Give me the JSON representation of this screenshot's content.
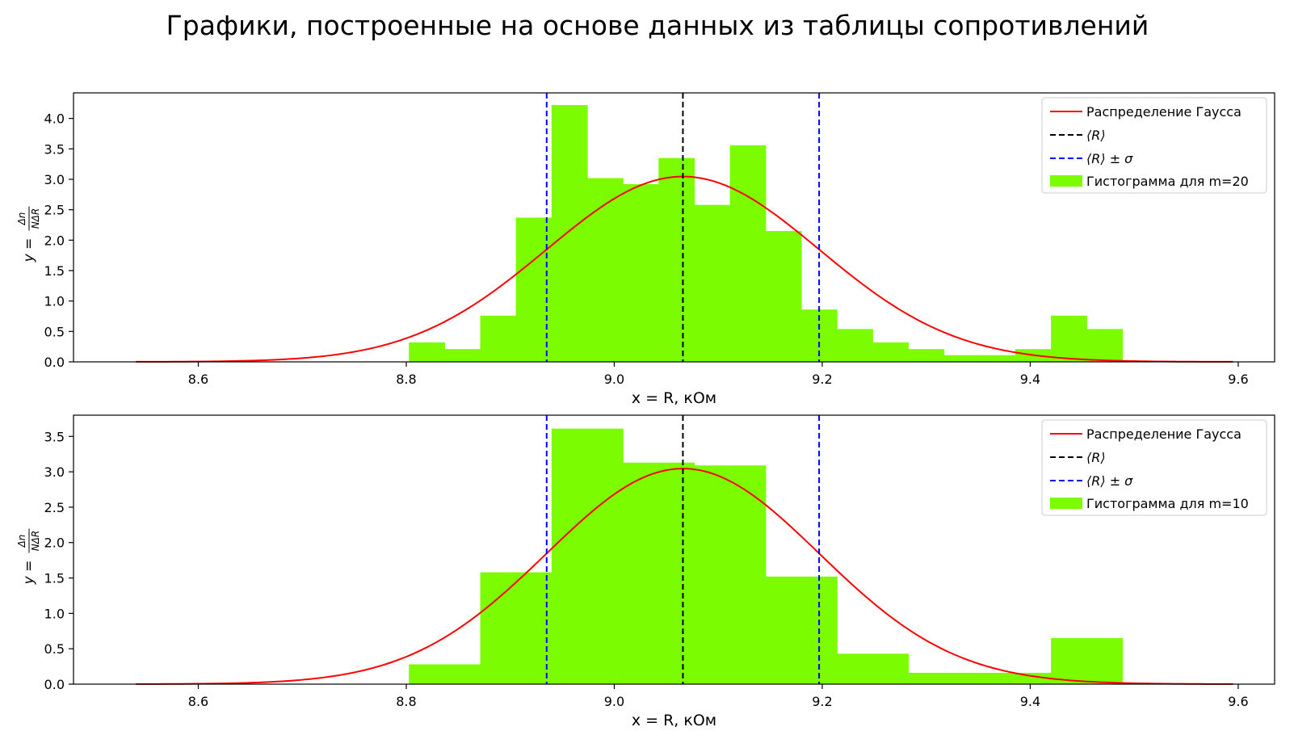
{
  "suptitle": "Графики, построенные на основе данных из таблицы сопротивлений",
  "colors": {
    "hist": "#7cfc00",
    "gauss": "#ff0000",
    "mean": "#000000",
    "sigma": "#0000ff"
  },
  "chart_data": [
    {
      "type": "bar",
      "subtype": "histogram-with-fit",
      "xlabel": "x = R, кОм",
      "ylabel": "y = Δn / NΔR",
      "ylabel_parts": {
        "lhs": "y =",
        "num": "Δn",
        "den": "NΔR"
      },
      "xlim": [
        8.48,
        9.635
      ],
      "ylim": [
        0,
        4.42
      ],
      "xticks": [
        8.6,
        8.8,
        9.0,
        9.2,
        9.4,
        9.6
      ],
      "yticks": [
        0.0,
        0.5,
        1.0,
        1.5,
        2.0,
        2.5,
        3.0,
        3.5,
        4.0
      ],
      "legend_position": "upper right",
      "legend": [
        "Распределение Гаусса",
        "⟨R⟩",
        "⟨R⟩ ± σ",
        "Гистограмма для m=20"
      ],
      "histogram": {
        "name": "Гистограмма для m=20",
        "bin_start": 8.8025,
        "bin_width": 0.0343,
        "values": [
          0.32,
          0.21,
          0.76,
          2.37,
          4.22,
          3.02,
          2.92,
          3.35,
          2.58,
          3.56,
          2.15,
          0.86,
          0.54,
          0.32,
          0.21,
          0.11,
          0.11,
          0.21,
          0.76,
          0.54
        ]
      },
      "gauss": {
        "name": "Распределение Гаусса",
        "mean": 9.066,
        "sigma": 0.131,
        "x_range": [
          8.54,
          9.595
        ]
      },
      "mean_line": {
        "name": "⟨R⟩",
        "x": 9.066
      },
      "sigma_lines": {
        "name": "⟨R⟩ ± σ",
        "x": [
          8.935,
          9.197
        ]
      }
    },
    {
      "type": "bar",
      "subtype": "histogram-with-fit",
      "xlabel": "x = R, кОм",
      "ylabel": "y = Δn / NΔR",
      "ylabel_parts": {
        "lhs": "y =",
        "num": "Δn",
        "den": "NΔR"
      },
      "xlim": [
        8.48,
        9.635
      ],
      "ylim": [
        0,
        3.8
      ],
      "xticks": [
        8.6,
        8.8,
        9.0,
        9.2,
        9.4,
        9.6
      ],
      "yticks": [
        0.0,
        0.5,
        1.0,
        1.5,
        2.0,
        2.5,
        3.0,
        3.5
      ],
      "legend_position": "upper right",
      "legend": [
        "Распределение Гаусса",
        "⟨R⟩",
        "⟨R⟩ ± σ",
        "Гистограмма для m=10"
      ],
      "histogram": {
        "name": "Гистограмма для m=10",
        "bin_start": 8.8025,
        "bin_width": 0.0686,
        "values": [
          0.28,
          1.58,
          3.61,
          3.13,
          3.09,
          1.52,
          0.43,
          0.16,
          0.16,
          0.65
        ]
      },
      "gauss": {
        "name": "Распределение Гаусса",
        "mean": 9.066,
        "sigma": 0.131,
        "x_range": [
          8.54,
          9.595
        ]
      },
      "mean_line": {
        "name": "⟨R⟩",
        "x": 9.066
      },
      "sigma_lines": {
        "name": "⟨R⟩ ± σ",
        "x": [
          8.935,
          9.197
        ]
      }
    }
  ]
}
